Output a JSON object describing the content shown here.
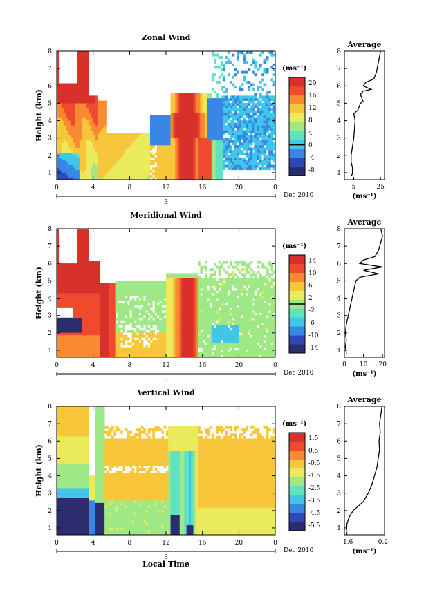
{
  "chart_data": [
    {
      "type": "heatmap",
      "title": "Zonal Wind",
      "ylabel": "Height (km)",
      "xlabel": "",
      "x_ticks": [
        "0",
        "4",
        "8",
        "12",
        "16",
        "20",
        "0"
      ],
      "y_ticks": [
        "1",
        "2",
        "3",
        "4",
        "5",
        "6",
        "7",
        "8"
      ],
      "xlim": [
        0,
        24
      ],
      "ylim": [
        0.6,
        8
      ],
      "date_label": "3",
      "date_suffix": "Dec 2010",
      "colorbar": {
        "unit": "(ms⁻¹)",
        "ticks": [
          "20",
          "16",
          "12",
          "8",
          "4",
          "0",
          "-4",
          "-8"
        ],
        "range": [
          -10,
          22
        ],
        "marker": 0
      },
      "average_profile": {
        "title": "Average",
        "x_ticks": [
          "5",
          "25"
        ],
        "xlim": [
          -2,
          28
        ],
        "xlabel": "(ms⁻¹)",
        "points": [
          [
            3,
            0.8
          ],
          [
            4,
            0.95
          ],
          [
            4,
            1.3
          ],
          [
            3,
            1.6
          ],
          [
            3,
            2.0
          ],
          [
            4,
            2.5
          ],
          [
            5,
            3.0
          ],
          [
            5.5,
            3.5
          ],
          [
            6,
            4.0
          ],
          [
            5,
            4.4
          ],
          [
            8,
            4.6
          ],
          [
            10,
            5.0
          ],
          [
            12,
            5.1
          ],
          [
            11,
            5.3
          ],
          [
            10,
            5.5
          ],
          [
            12,
            5.7
          ],
          [
            18,
            5.8
          ],
          [
            12,
            6.0
          ],
          [
            14,
            6.2
          ],
          [
            20,
            6.4
          ],
          [
            22,
            6.8
          ],
          [
            23,
            7.2
          ],
          [
            24,
            7.6
          ],
          [
            25,
            8.0
          ]
        ]
      }
    },
    {
      "type": "heatmap",
      "title": "Meridional Wind",
      "ylabel": "Height (km)",
      "xlabel": "",
      "x_ticks": [
        "0",
        "4",
        "8",
        "12",
        "16",
        "20",
        "0"
      ],
      "y_ticks": [
        "1",
        "2",
        "3",
        "4",
        "5",
        "6",
        "7",
        "8"
      ],
      "xlim": [
        0,
        24
      ],
      "ylim": [
        0.6,
        8
      ],
      "date_label": "3",
      "date_suffix": "Dec 2010",
      "colorbar": {
        "unit": "(ms⁻¹)",
        "ticks": [
          "14",
          "10",
          "6",
          "2",
          "-2",
          "-6",
          "-10",
          "-14"
        ],
        "range": [
          -16,
          16
        ],
        "marker": 0
      },
      "average_profile": {
        "title": "Average",
        "x_ticks": [
          "0",
          "10",
          "20"
        ],
        "xlim": [
          0,
          21
        ],
        "xlabel": "(ms⁻¹)",
        "points": [
          [
            1,
            0.8
          ],
          [
            0.5,
            1.2
          ],
          [
            1,
            1.6
          ],
          [
            0.5,
            2.0
          ],
          [
            1,
            2.5
          ],
          [
            2,
            3.0
          ],
          [
            3,
            3.5
          ],
          [
            4,
            4.0
          ],
          [
            5,
            4.5
          ],
          [
            6,
            5.0
          ],
          [
            8,
            5.2
          ],
          [
            18,
            5.4
          ],
          [
            10,
            5.6
          ],
          [
            20,
            5.8
          ],
          [
            8,
            6.0
          ],
          [
            10,
            6.2
          ],
          [
            16,
            6.4
          ],
          [
            18,
            6.8
          ],
          [
            19,
            7.2
          ],
          [
            20,
            7.6
          ],
          [
            19,
            8.0
          ]
        ]
      }
    },
    {
      "type": "heatmap",
      "title": "Vertical Wind",
      "ylabel": "Height (km)",
      "xlabel": "Local Time",
      "x_ticks": [
        "0",
        "4",
        "8",
        "12",
        "16",
        "20",
        "0"
      ],
      "y_ticks": [
        "1",
        "2",
        "3",
        "4",
        "5",
        "6",
        "7",
        "8"
      ],
      "xlim": [
        0,
        24
      ],
      "ylim": [
        0.6,
        8
      ],
      "date_label": "3",
      "date_suffix": "Dec 2010",
      "colorbar": {
        "unit": "(ms⁻¹)",
        "ticks": [
          "1.5",
          "0.5",
          "-0.5",
          "-1.5",
          "-2.5",
          "-3.5",
          "-4.5",
          "-5.5"
        ],
        "range": [
          -6,
          2
        ],
        "marker": null
      },
      "average_profile": {
        "title": "Average",
        "x_ticks": [
          "-1.6",
          "-0.2"
        ],
        "xlim": [
          -1.7,
          -0.1
        ],
        "xlabel": "(ms⁻¹)",
        "points": [
          [
            -1.62,
            0.8
          ],
          [
            -1.6,
            1.2
          ],
          [
            -1.52,
            1.6
          ],
          [
            -1.35,
            2.0
          ],
          [
            -0.95,
            2.5
          ],
          [
            -0.75,
            3.0
          ],
          [
            -0.6,
            3.5
          ],
          [
            -0.5,
            4.0
          ],
          [
            -0.4,
            4.5
          ],
          [
            -0.35,
            5.0
          ],
          [
            -0.3,
            5.5
          ],
          [
            -0.32,
            6.0
          ],
          [
            -0.27,
            6.5
          ],
          [
            -0.3,
            7.0
          ],
          [
            -0.25,
            7.5
          ],
          [
            -0.2,
            8.0
          ]
        ]
      }
    }
  ],
  "colors": {
    "palette": [
      "#2c2d6e",
      "#2f48b8",
      "#3a86e4",
      "#41c6e8",
      "#5fe2c0",
      "#9fe886",
      "#e9ea5c",
      "#f8c63a",
      "#f88a32",
      "#ee4a2e",
      "#d8302a"
    ],
    "missing": "#ffffff"
  }
}
